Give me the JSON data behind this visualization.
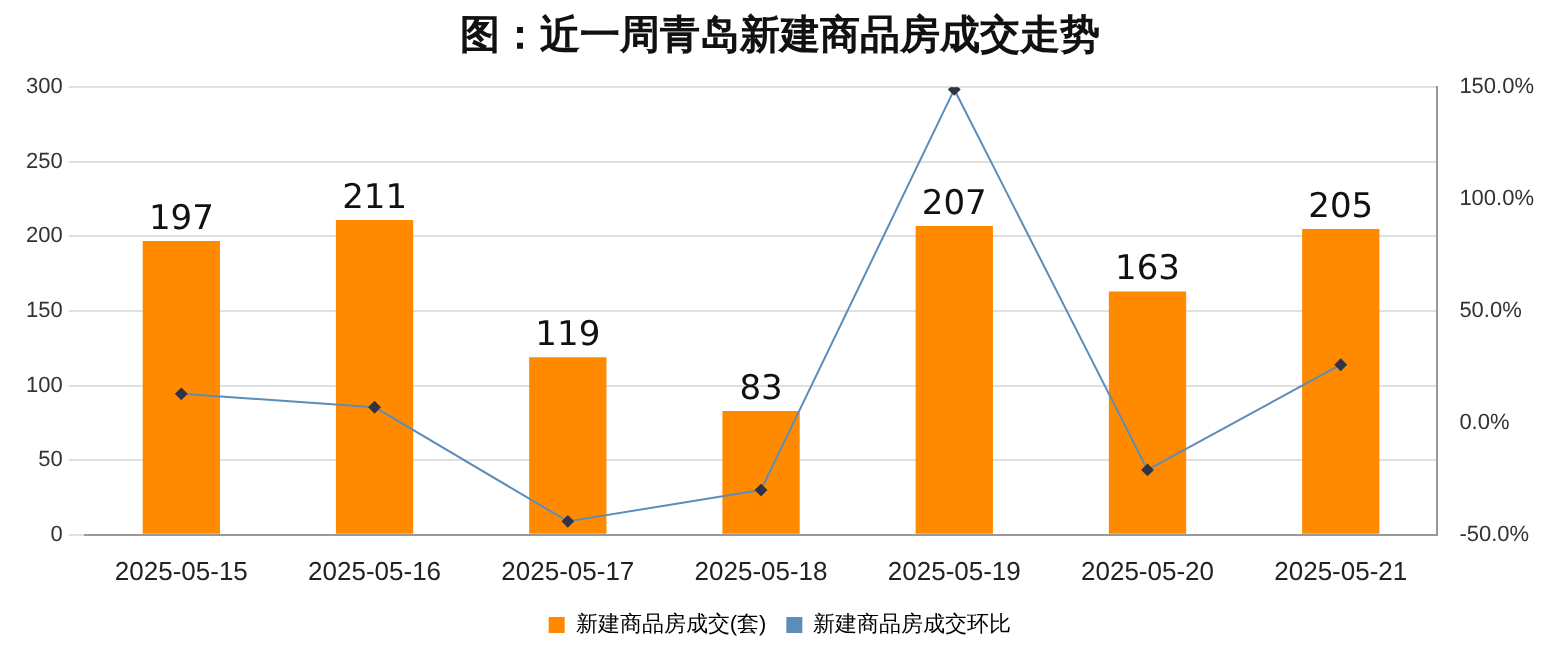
{
  "chart_data": {
    "type": "bar",
    "title": "图：近一周青岛新建商品房成交走势",
    "categories": [
      "2025-05-15",
      "2025-05-16",
      "2025-05-17",
      "2025-05-18",
      "2025-05-19",
      "2025-05-20",
      "2025-05-21"
    ],
    "series": [
      {
        "name": "新建商品房成交(套)",
        "color": "#ff8a00",
        "values": [
          197,
          211,
          119,
          83,
          207,
          163,
          205
        ],
        "data_labels": true
      },
      {
        "name": "新建商品房成交环比",
        "type": "line",
        "axis": "y2",
        "color": "#5b8db8",
        "values": [
          13,
          7,
          -44,
          -30,
          149,
          -21,
          26
        ],
        "marker": "diamond"
      }
    ],
    "ylim": [
      0,
      300
    ],
    "yticks": [
      0,
      50,
      100,
      150,
      200,
      250,
      300
    ],
    "y2lim": [
      -50,
      150
    ],
    "y2ticks": [
      {
        "value": -50,
        "label": "-50.0%"
      },
      {
        "value": 0,
        "label": "0.0%"
      },
      {
        "value": 50,
        "label": "50.0%"
      },
      {
        "value": 100,
        "label": "100.0%"
      },
      {
        "value": 150,
        "label": "150.0%"
      }
    ],
    "grid": "y",
    "legend": "bottom"
  }
}
